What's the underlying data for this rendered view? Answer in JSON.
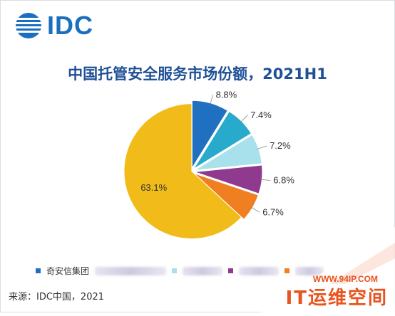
{
  "logo": {
    "text": "IDC"
  },
  "chart_data": {
    "type": "pie",
    "title": "中国托管安全服务市场份额，2021H1",
    "slices": [
      {
        "label": "奇安信集团",
        "value": 8.8,
        "display": "8.8%",
        "color": "#1f70c1"
      },
      {
        "label": "",
        "value": 7.4,
        "display": "7.4%",
        "color": "#27aacc"
      },
      {
        "label": "",
        "value": 7.2,
        "display": "7.2%",
        "color": "#a8e1ec"
      },
      {
        "label": "",
        "value": 6.8,
        "display": "6.8%",
        "color": "#8f3a8e"
      },
      {
        "label": "",
        "value": 6.7,
        "display": "6.7%",
        "color": "#f07f21"
      },
      {
        "label": "",
        "value": 63.1,
        "display": "63.1%",
        "color": "#f1bb19"
      }
    ],
    "legend": {
      "placement": "bottom-left",
      "visible_label": "奇安信集团"
    }
  },
  "source": "来源：IDC中国，2021",
  "watermark": {
    "url": "WWW.94IP.COM",
    "brand": "IT运维空间"
  }
}
